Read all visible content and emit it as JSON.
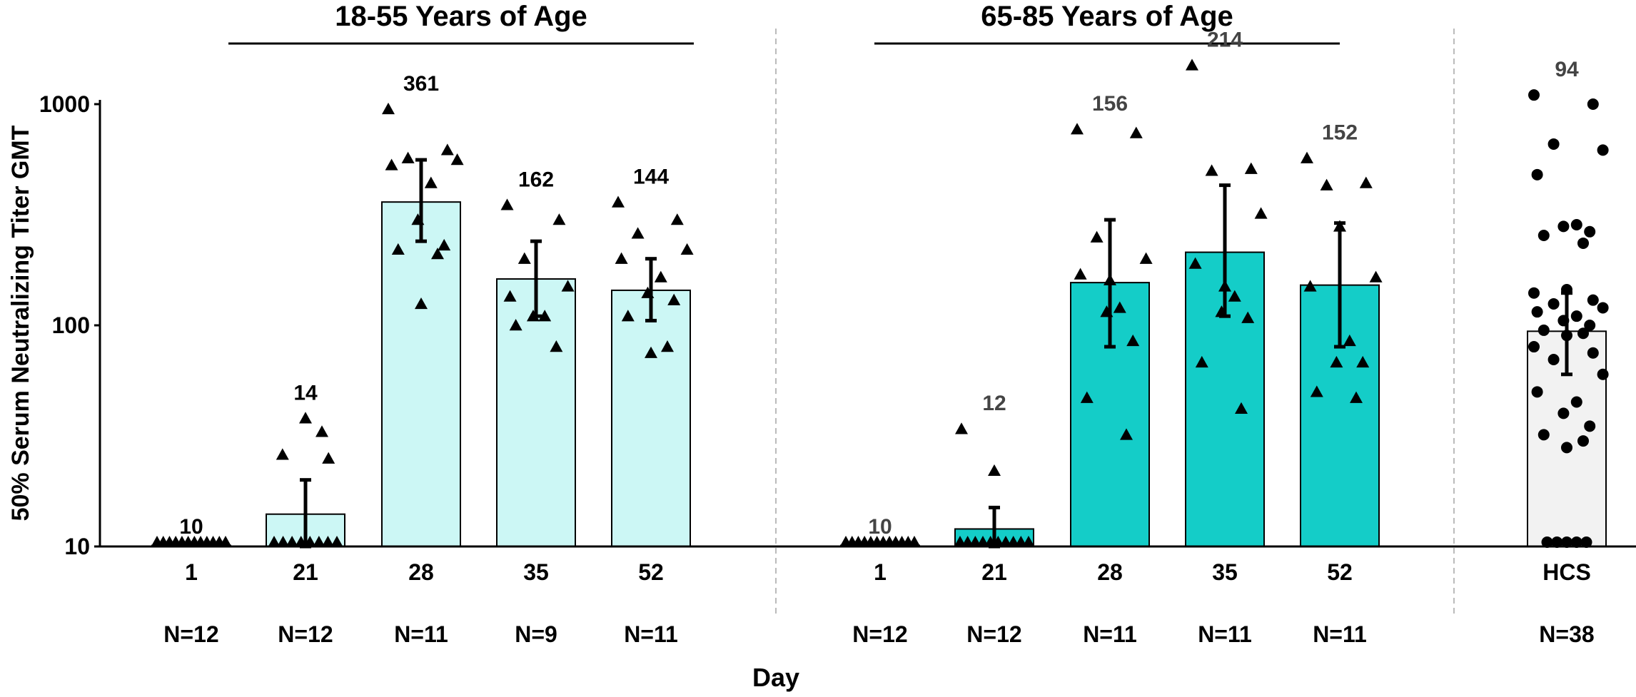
{
  "chart_data": {
    "type": "bar",
    "ylabel": "50% Serum Neutralizing Titer GMT",
    "xlabel": "Day",
    "yscale": "log",
    "ylim": [
      10,
      1500
    ],
    "yticks": [
      10,
      100,
      1000
    ],
    "grid": false,
    "groups": [
      {
        "label": "18-55 Years of Age",
        "bar_color": "#ccf7f5",
        "gmt_label_color": "#000000",
        "marker": "triangle"
      },
      {
        "label": "65-85 Years of Age",
        "bar_color": "#14cdc8",
        "gmt_label_color": "#444444",
        "marker": "triangle"
      },
      {
        "label": "",
        "bar_color": "#f2f2f2",
        "gmt_label_color": "#444444",
        "marker": "circle"
      }
    ],
    "bars": [
      {
        "group": 0,
        "category": "1",
        "n_label": "N=12",
        "gmt": 10,
        "gmt_label": "10",
        "ci": [
          10,
          10
        ],
        "points": [
          10,
          10,
          10,
          10,
          10,
          10,
          10,
          10,
          10,
          10,
          10,
          10
        ]
      },
      {
        "group": 0,
        "category": "21",
        "n_label": "N=12",
        "gmt": 14,
        "gmt_label": "14",
        "ci": [
          10,
          20
        ],
        "points": [
          10,
          10,
          10,
          10,
          10,
          10,
          10,
          25,
          26,
          33,
          38,
          10
        ]
      },
      {
        "group": 0,
        "category": "28",
        "n_label": "N=11",
        "gmt": 361,
        "gmt_label": "361",
        "ci": [
          240,
          560
        ],
        "points": [
          950,
          620,
          570,
          560,
          530,
          440,
          300,
          230,
          220,
          210,
          125
        ]
      },
      {
        "group": 0,
        "category": "35",
        "n_label": "N=9",
        "gmt": 162,
        "gmt_label": "162",
        "ci": [
          110,
          240
        ],
        "points": [
          350,
          300,
          200,
          150,
          135,
          110,
          110,
          80,
          100
        ]
      },
      {
        "group": 0,
        "category": "52",
        "n_label": "N=11",
        "gmt": 144,
        "gmt_label": "144",
        "ci": [
          105,
          200
        ],
        "points": [
          360,
          300,
          260,
          220,
          200,
          165,
          140,
          130,
          110,
          80,
          75
        ]
      },
      {
        "group": 1,
        "category": "1",
        "n_label": "N=12",
        "gmt": 10,
        "gmt_label": "10",
        "ci": [
          10,
          10
        ],
        "points": [
          10,
          10,
          10,
          10,
          10,
          10,
          10,
          10,
          10,
          10,
          10,
          10
        ]
      },
      {
        "group": 1,
        "category": "21",
        "n_label": "N=12",
        "gmt": 12,
        "gmt_label": "12",
        "ci": [
          10,
          15
        ],
        "points": [
          10,
          10,
          10,
          10,
          10,
          10,
          10,
          10,
          10,
          10,
          22,
          34
        ]
      },
      {
        "group": 1,
        "category": "28",
        "n_label": "N=11",
        "gmt": 156,
        "gmt_label": "156",
        "ci": [
          80,
          300
        ],
        "points": [
          770,
          740,
          250,
          200,
          170,
          120,
          115,
          85,
          47,
          32,
          160
        ]
      },
      {
        "group": 1,
        "category": "35",
        "n_label": "N=11",
        "gmt": 214,
        "gmt_label": "214",
        "ci": [
          110,
          430
        ],
        "points": [
          1500,
          510,
          500,
          320,
          190,
          135,
          115,
          108,
          68,
          42,
          150
        ]
      },
      {
        "group": 1,
        "category": "52",
        "n_label": "N=11",
        "gmt": 152,
        "gmt_label": "152",
        "ci": [
          80,
          290
        ],
        "points": [
          570,
          440,
          430,
          165,
          150,
          85,
          68,
          68,
          50,
          47,
          280
        ]
      },
      {
        "group": 2,
        "category": "HCS",
        "n_label": "N=38",
        "gmt": 94,
        "gmt_label": "94",
        "ci": [
          60,
          140
        ],
        "points": [
          1100,
          1000,
          660,
          620,
          480,
          285,
          280,
          265,
          255,
          235,
          145,
          140,
          130,
          125,
          120,
          115,
          110,
          105,
          100,
          95,
          92,
          90,
          80,
          75,
          70,
          60,
          50,
          45,
          40,
          35,
          32,
          30,
          28,
          10,
          10,
          10,
          10,
          10
        ]
      }
    ]
  }
}
